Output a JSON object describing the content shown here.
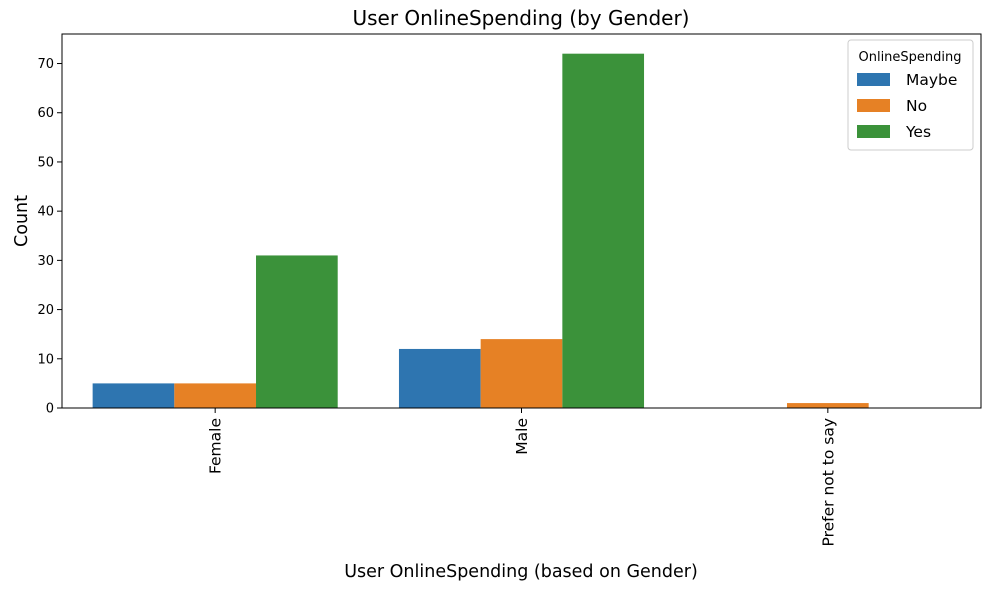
{
  "chart_data": {
    "type": "bar",
    "title": "User OnlineSpending (by Gender)",
    "xlabel": "User OnlineSpending (based on Gender)",
    "ylabel": "Count",
    "categories": [
      "Female",
      "Male",
      "Prefer not to say"
    ],
    "series": [
      {
        "name": "Maybe",
        "color": "#2e75b0",
        "values": [
          5,
          12,
          0
        ]
      },
      {
        "name": "No",
        "color": "#e68125",
        "values": [
          5,
          14,
          1
        ]
      },
      {
        "name": "Yes",
        "color": "#3b923a",
        "values": [
          31,
          72,
          0
        ]
      }
    ],
    "ylim": [
      0,
      76
    ],
    "yticks": [
      "0",
      "10",
      "20",
      "30",
      "40",
      "50",
      "60",
      "70"
    ],
    "legend": {
      "title": "OnlineSpending",
      "placement": "top-right"
    },
    "grid": false
  }
}
